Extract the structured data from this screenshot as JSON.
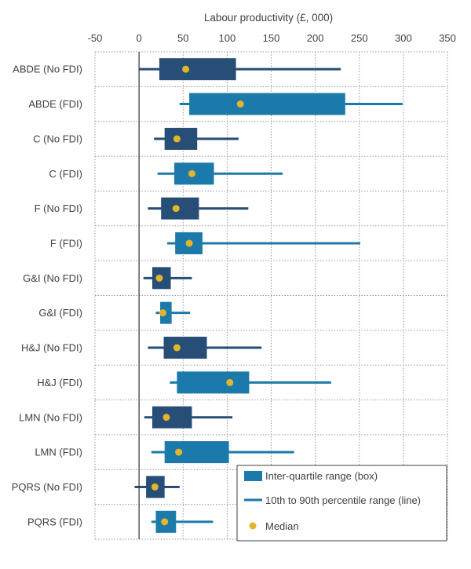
{
  "chart_data": {
    "type": "boxplot",
    "orientation": "horizontal",
    "xlabel": "Labour productivity (£, 000)",
    "xlim": [
      -50,
      350
    ],
    "xticks": [
      -50,
      0,
      50,
      100,
      150,
      200,
      250,
      300,
      350
    ],
    "grid": true,
    "legend_position": "bottom-right",
    "legend": {
      "box": "Inter-quartile range (box)",
      "line": "10th to 90th percentile range (line)",
      "median": "Median"
    },
    "colors": {
      "no_fdi": "#264E76",
      "fdi": "#1B7AAA",
      "median": "#E2B52C",
      "axis": "#404040"
    },
    "rows": [
      {
        "label": "ABDE (No FDI)",
        "group": "no_fdi",
        "p10": 0,
        "q1": 23,
        "median": 53,
        "q3": 110,
        "p90": 229
      },
      {
        "label": "ABDE (FDI)",
        "group": "fdi",
        "p10": 46,
        "q1": 57,
        "median": 115,
        "q3": 234,
        "p90": 299
      },
      {
        "label": "C (No FDI)",
        "group": "no_fdi",
        "p10": 17,
        "q1": 29,
        "median": 43,
        "q3": 66,
        "p90": 113
      },
      {
        "label": "C (FDI)",
        "group": "fdi",
        "p10": 21,
        "q1": 40,
        "median": 60,
        "q3": 85,
        "p90": 163
      },
      {
        "label": "F (No FDI)",
        "group": "no_fdi",
        "p10": 10,
        "q1": 25,
        "median": 42,
        "q3": 68,
        "p90": 124
      },
      {
        "label": "F (FDI)",
        "group": "fdi",
        "p10": 32,
        "q1": 41,
        "median": 57,
        "q3": 72,
        "p90": 251
      },
      {
        "label": "G&I (No FDI)",
        "group": "no_fdi",
        "p10": 5,
        "q1": 15,
        "median": 23,
        "q3": 36,
        "p90": 60
      },
      {
        "label": "G&I (FDI)",
        "group": "fdi",
        "p10": 19,
        "q1": 24,
        "median": 27,
        "q3": 37,
        "p90": 58
      },
      {
        "label": "H&J (No FDI)",
        "group": "no_fdi",
        "p10": 10,
        "q1": 28,
        "median": 43,
        "q3": 77,
        "p90": 139
      },
      {
        "label": "H&J (FDI)",
        "group": "fdi",
        "p10": 35,
        "q1": 43,
        "median": 103,
        "q3": 125,
        "p90": 218
      },
      {
        "label": "LMN (No FDI)",
        "group": "no_fdi",
        "p10": 6,
        "q1": 15,
        "median": 31,
        "q3": 60,
        "p90": 106
      },
      {
        "label": "LMN (FDI)",
        "group": "fdi",
        "p10": 14,
        "q1": 29,
        "median": 45,
        "q3": 102,
        "p90": 176
      },
      {
        "label": "PQRS (No FDI)",
        "group": "no_fdi",
        "p10": -5,
        "q1": 8,
        "median": 18,
        "q3": 29,
        "p90": 46
      },
      {
        "label": "PQRS (FDI)",
        "group": "fdi",
        "p10": 14,
        "q1": 19,
        "median": 29,
        "q3": 42,
        "p90": 84
      }
    ]
  }
}
